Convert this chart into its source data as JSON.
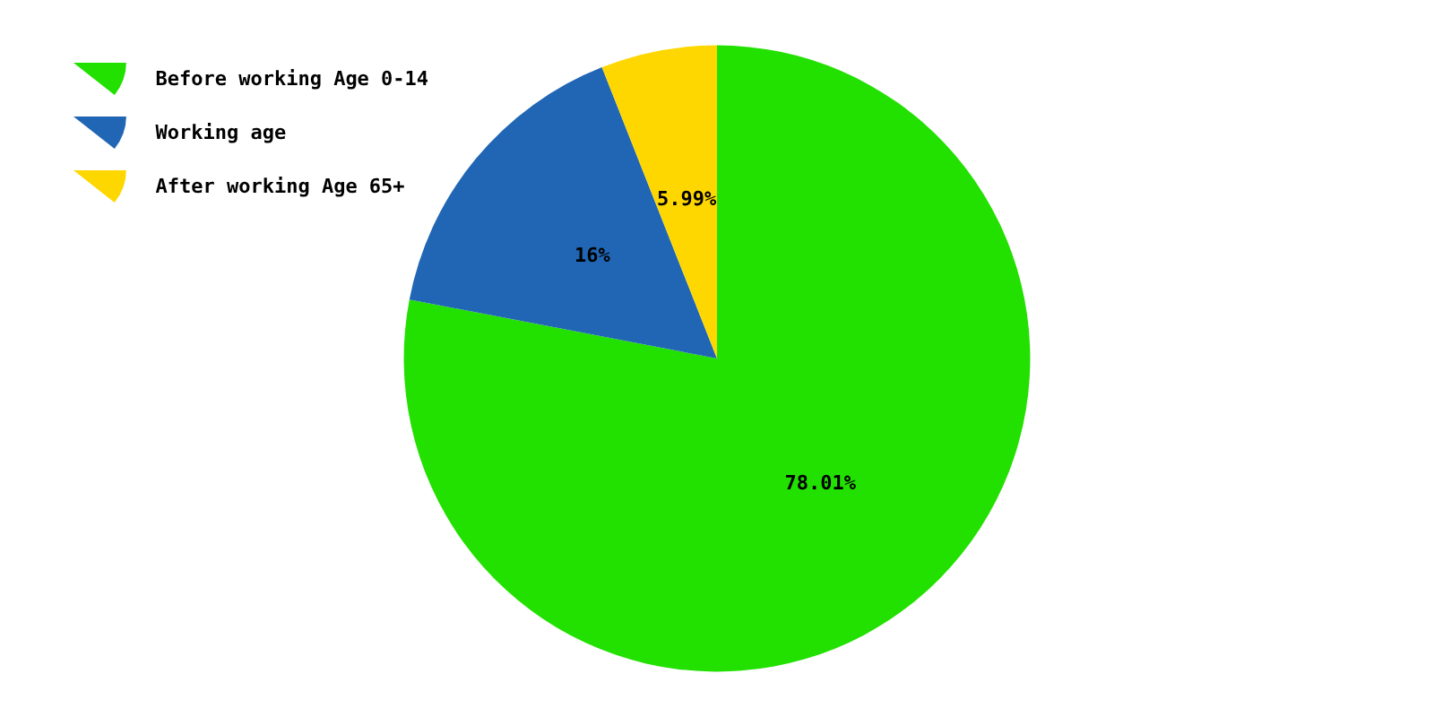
{
  "chart_data": {
    "type": "pie",
    "categories": [
      "Before working Age 0-14",
      "Working age",
      "After working Age 65+"
    ],
    "values": [
      78.01,
      16,
      5.99
    ],
    "colors": [
      "#22e000",
      "#2066b4",
      "#ffd700"
    ],
    "value_labels": [
      "78.01%",
      "16%",
      "5.99%"
    ],
    "legend": "top left"
  }
}
